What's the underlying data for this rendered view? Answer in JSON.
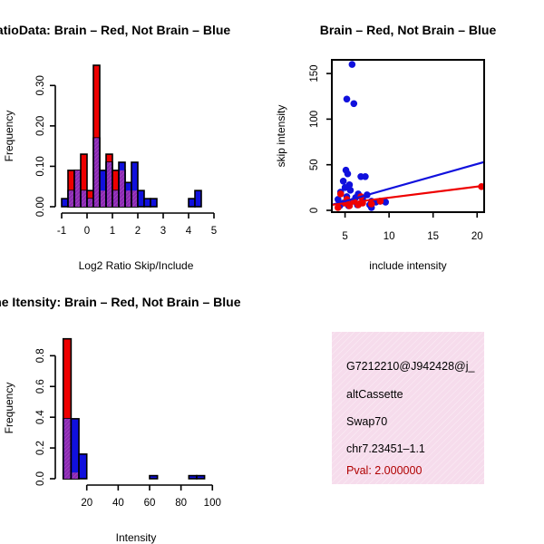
{
  "colors": {
    "red": "#ee0000",
    "blue": "#1010dd",
    "overlap": "#8a2ab0",
    "panel_bg": "#f6dcec",
    "panel_hatch": "#ffffff",
    "pval": "#b00000"
  },
  "chart_data": [
    {
      "id": "ratio",
      "type": "bar",
      "title": "RatioData: Brain – Red, Not Brain – Blue",
      "xlabel": "Log2 Ratio Skip/Include",
      "ylabel": "Frequency",
      "xlim": [
        -1,
        5
      ],
      "ylim": [
        0,
        0.35
      ],
      "xticks": [
        -1,
        0,
        1,
        2,
        3,
        4,
        5
      ],
      "yticks": [
        "0.00",
        "0.10",
        "0.20",
        "0.30"
      ],
      "bin_start": -1.0,
      "bin_width": 0.25,
      "series": [
        {
          "name": "Brain",
          "color": "red",
          "values": [
            0,
            0.09,
            0.09,
            0.13,
            0.04,
            0.35,
            0.04,
            0.13,
            0.09,
            0.09,
            0.04,
            0.04,
            0,
            0,
            0,
            0,
            0,
            0,
            0,
            0,
            0,
            0,
            0,
            0
          ]
        },
        {
          "name": "Not Brain",
          "color": "blue",
          "values": [
            0.02,
            0.04,
            0.09,
            0.04,
            0.02,
            0.17,
            0.09,
            0.11,
            0.04,
            0.11,
            0.06,
            0.11,
            0.04,
            0.02,
            0.02,
            0,
            0,
            0,
            0,
            0,
            0.02,
            0.04,
            0,
            0
          ]
        }
      ]
    },
    {
      "id": "scatter",
      "type": "scatter",
      "title": "Brain – Red, Not Brain – Blue",
      "xlabel": "include intensity",
      "ylabel": "skip intensity",
      "xlim": [
        3.5,
        20.8
      ],
      "ylim": [
        -2,
        165
      ],
      "xticks": [
        5,
        10,
        15,
        20
      ],
      "yticks": [
        0,
        50,
        100,
        150
      ],
      "series": [
        {
          "name": "Not Brain",
          "color": "blue",
          "points": [
            [
              5.8,
              160
            ],
            [
              5.2,
              122
            ],
            [
              6.0,
              117
            ],
            [
              5.1,
              44
            ],
            [
              5.3,
              40
            ],
            [
              4.8,
              32
            ],
            [
              5.5,
              28
            ],
            [
              6.8,
              37
            ],
            [
              7.3,
              37
            ],
            [
              5.0,
              25
            ],
            [
              5.6,
              22
            ],
            [
              4.5,
              20
            ],
            [
              6.5,
              18
            ],
            [
              7.5,
              17
            ],
            [
              4.2,
              12
            ],
            [
              5.2,
              15
            ],
            [
              6.2,
              14
            ],
            [
              8.0,
              10
            ],
            [
              9.0,
              10
            ],
            [
              9.6,
              9
            ],
            [
              7.0,
              12
            ],
            [
              8.5,
              9
            ],
            [
              4.8,
              8
            ],
            [
              5.9,
              10
            ],
            [
              6.4,
              6
            ],
            [
              8.0,
              3
            ],
            [
              4.4,
              5
            ],
            [
              7.8,
              6
            ],
            [
              5.4,
              5
            ]
          ]
        },
        {
          "name": "Brain",
          "color": "red",
          "points": [
            [
              4.5,
              18
            ],
            [
              5.0,
              8
            ],
            [
              5.5,
              5
            ],
            [
              6.0,
              10
            ],
            [
              6.5,
              6
            ],
            [
              7.0,
              8
            ],
            [
              4.2,
              3
            ],
            [
              5.2,
              12
            ],
            [
              6.8,
              15
            ],
            [
              8.0,
              7
            ],
            [
              9.0,
              10
            ],
            [
              20.5,
              26
            ]
          ]
        }
      ],
      "fit_lines": [
        {
          "name": "Not Brain",
          "color": "blue",
          "x": [
            3.5,
            20.8
          ],
          "y": [
            6,
            53
          ]
        },
        {
          "name": "Brain",
          "color": "red",
          "x": [
            3.5,
            20.8
          ],
          "y": [
            6,
            27
          ]
        }
      ]
    },
    {
      "id": "intensity",
      "type": "bar",
      "title": "Gene Itensity: Brain – Red, Not Brain – Blue",
      "xlabel": "Intensity",
      "ylabel": "Frequency",
      "xlim": [
        4,
        101
      ],
      "ylim": [
        0,
        0.92
      ],
      "xticks": [
        20,
        40,
        60,
        80,
        100
      ],
      "yticks": [
        "0.0",
        "0.2",
        "0.4",
        "0.6",
        "0.8"
      ],
      "bin_start": 5,
      "bin_width": 5,
      "series": [
        {
          "name": "Brain",
          "color": "red",
          "values": [
            0.91,
            0.04,
            0,
            0,
            0,
            0,
            0,
            0,
            0,
            0,
            0,
            0,
            0,
            0,
            0,
            0,
            0,
            0,
            0
          ]
        },
        {
          "name": "Not Brain",
          "color": "blue",
          "values": [
            0.39,
            0.39,
            0.16,
            0,
            0,
            0,
            0,
            0,
            0,
            0,
            0,
            0.02,
            0,
            0,
            0,
            0,
            0.02,
            0.02,
            0
          ]
        }
      ]
    }
  ],
  "info_panel": {
    "lines": [
      "G7212210@J942428@j_",
      "altCassette",
      "Swap70",
      "chr7.23451–1.1"
    ],
    "pval": "Pval: 2.000000"
  }
}
